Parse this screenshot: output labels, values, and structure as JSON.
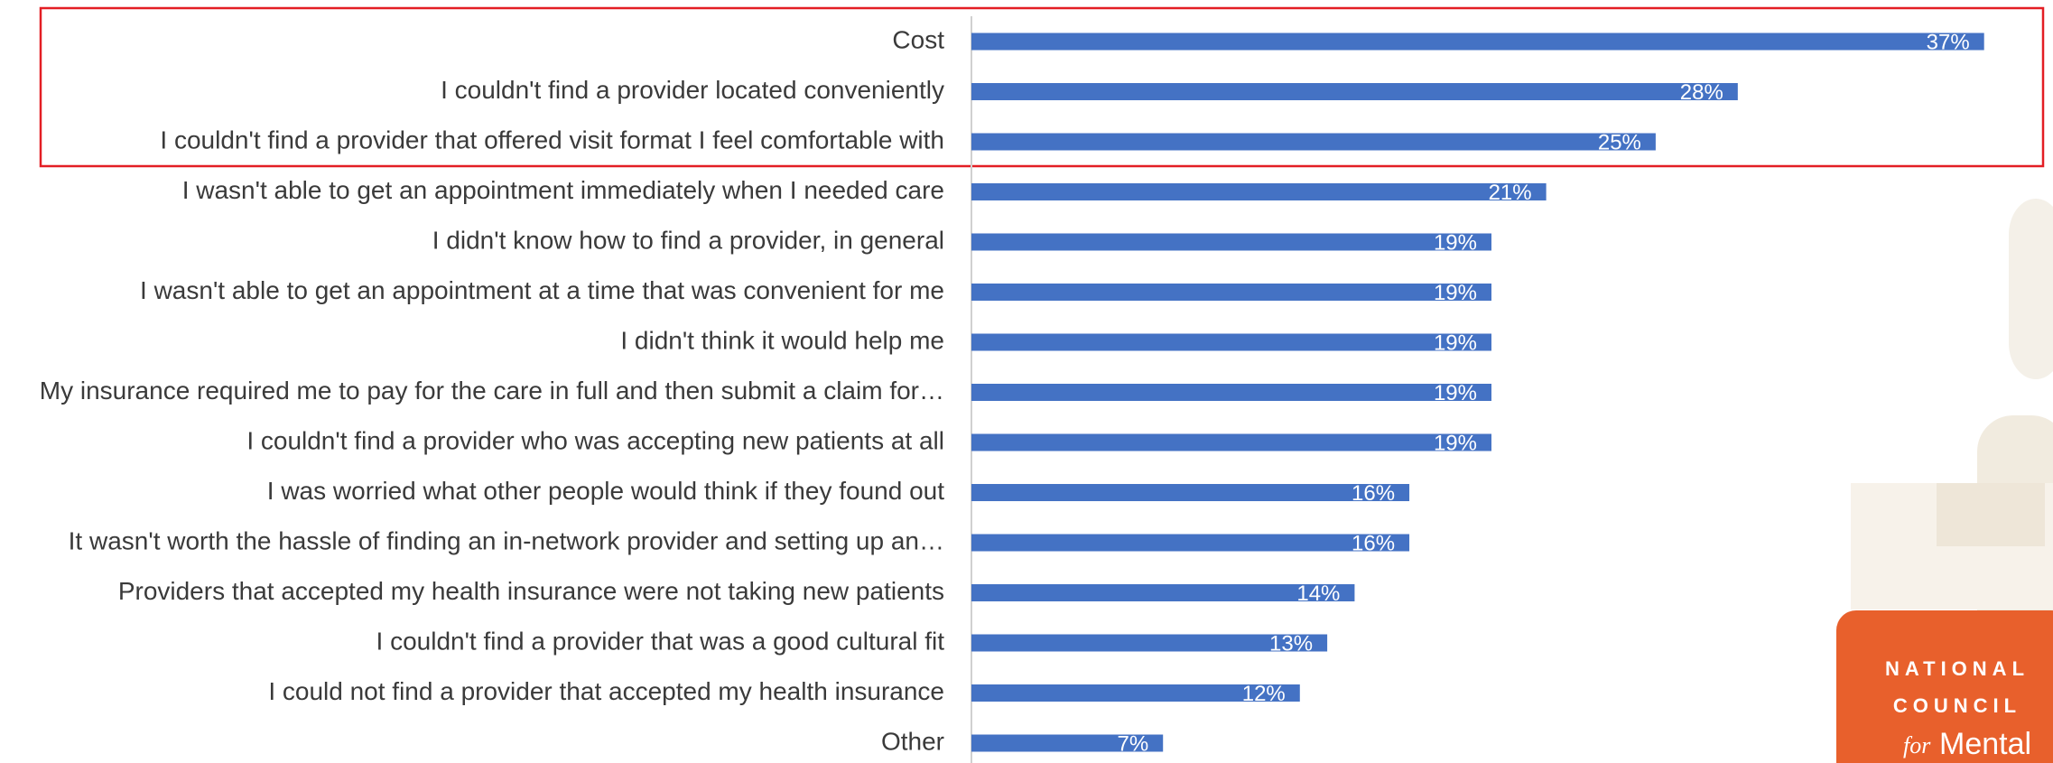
{
  "chart_data": {
    "type": "barh",
    "categories": [
      "Cost",
      "I couldn't find a provider located conveniently",
      "I couldn't find a provider that offered visit format I feel comfortable with",
      "I wasn't able to get an appointment immediately when I needed care",
      "I didn't know how to find a provider, in general",
      "I wasn't able to get an appointment at a time that was convenient for me",
      "I didn't think it would help me",
      "My insurance required me to pay for the care in full and then submit a claim for…",
      "I couldn't find a provider who was accepting new patients at all",
      "I was worried what other people would think if they found out",
      "It wasn't worth the hassle of finding an in-network provider and setting up an…",
      "Providers that accepted my health insurance were not taking new patients",
      "I couldn't find a provider that was a good cultural fit",
      "I could not find a provider that accepted my health insurance",
      "Other"
    ],
    "values": [
      37,
      28,
      25,
      21,
      19,
      19,
      19,
      19,
      19,
      16,
      16,
      14,
      13,
      12,
      7
    ],
    "value_labels": [
      "37%",
      "28%",
      "25%",
      "21%",
      "19%",
      "19%",
      "19%",
      "19%",
      "19%",
      "16%",
      "16%",
      "14%",
      "13%",
      "12%",
      "7%"
    ],
    "color": "#4472c4",
    "xlim": [
      0,
      38
    ]
  },
  "logo": {
    "lines": [
      "NATIONAL",
      "COUNCIL"
    ],
    "tail": [
      "for",
      "Mental"
    ]
  }
}
